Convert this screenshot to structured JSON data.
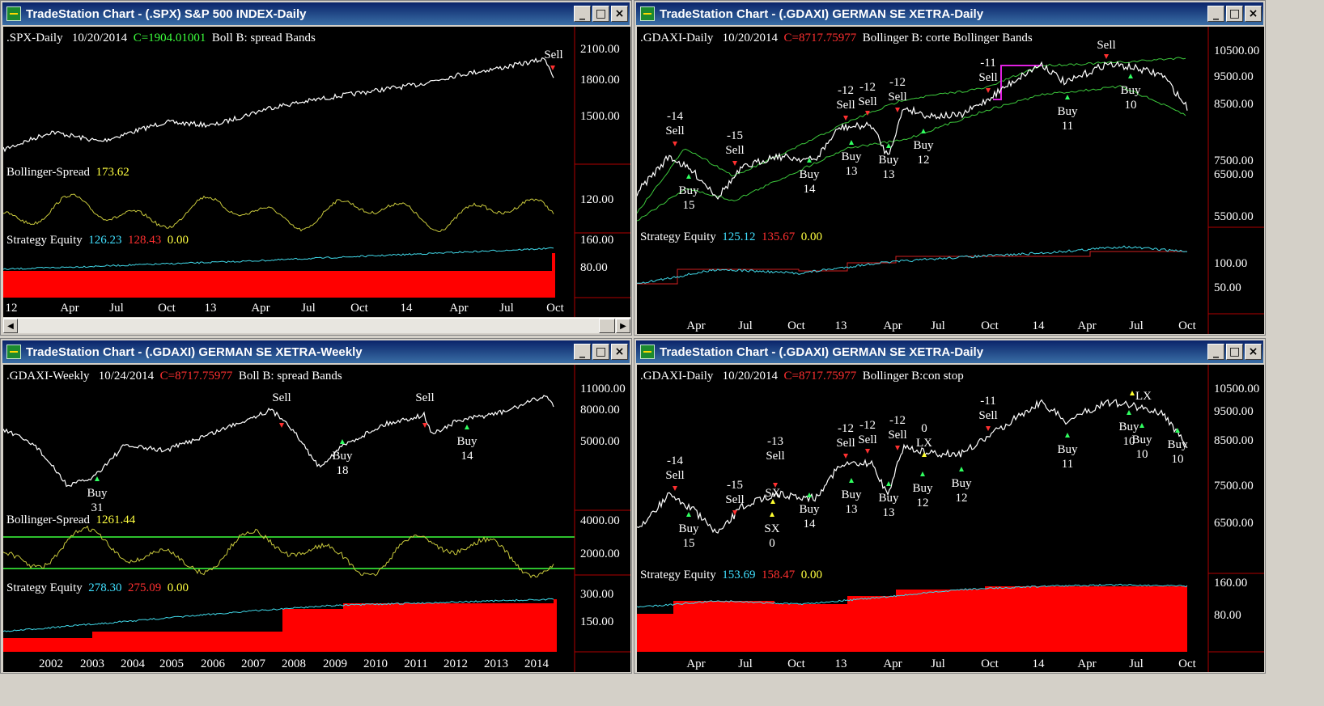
{
  "windows": [
    {
      "id": "spx",
      "title": "TradeStation Chart - (.SPX) S&P 500 INDEX-Daily",
      "header": {
        "symbol": ".SPX-Daily",
        "date": "10/20/2014",
        "close": "C=1904.01001",
        "study": "Boll B: spread Bands"
      },
      "price_axis": [
        "2100.00",
        "1800.00",
        "1500.00"
      ],
      "indicator": {
        "name": "Bollinger-Spread",
        "value": "173.62",
        "axis": [
          "120.00"
        ]
      },
      "equity": {
        "name": "Strategy Equity",
        "v1": "126.23",
        "v2": "128.43",
        "v3": "0.00",
        "axis": [
          "160.00",
          "80.00"
        ]
      },
      "x_labels": [
        "12",
        "Apr",
        "Jul",
        "Oct",
        "13",
        "Apr",
        "Jul",
        "Oct",
        "14",
        "Apr",
        "Jul",
        "Oct"
      ],
      "signals": [
        {
          "type": "sell",
          "text": "Sell"
        }
      ]
    },
    {
      "id": "dax-daily-1",
      "title": "TradeStation Chart - (.GDAXI) GERMAN SE XETRA-Daily",
      "header": {
        "symbol": ".GDAXI-Daily",
        "date": "10/20/2014",
        "close": "C=8717.75977",
        "study": "Bollinger B: corte  Bollinger Bands"
      },
      "price_axis": [
        "10500.00",
        "9500.00",
        "8500.00",
        "7500.00",
        "6500.00",
        "5500.00"
      ],
      "equity": {
        "name": "Strategy Equity",
        "v1": "125.12",
        "v2": "135.67",
        "v3": "0.00",
        "axis": [
          "100.00",
          "50.00"
        ]
      },
      "x_labels": [
        "Apr",
        "Jul",
        "Oct",
        "13",
        "Apr",
        "Jul",
        "Oct",
        "14",
        "Apr",
        "Jul",
        "Oct"
      ],
      "signals": [
        {
          "type": "sell",
          "text": "-14\nSell"
        },
        {
          "type": "buy",
          "text": "Buy\n15"
        },
        {
          "type": "sell",
          "text": "-15\nSell"
        },
        {
          "type": "buy",
          "text": "Buy\n14"
        },
        {
          "type": "sell",
          "text": "-12\nSell"
        },
        {
          "type": "buy",
          "text": "Buy\n13"
        },
        {
          "type": "sell",
          "text": "-12\nSell"
        },
        {
          "type": "buy",
          "text": "Buy\n13"
        },
        {
          "type": "sell",
          "text": "-12\nSell"
        },
        {
          "type": "buy",
          "text": "Buy\n12"
        },
        {
          "type": "sell",
          "text": "-11\nSell"
        },
        {
          "type": "buy",
          "text": "Buy\n11"
        },
        {
          "type": "sell",
          "text": "Sell"
        },
        {
          "type": "buy",
          "text": "Buy\n10"
        }
      ]
    },
    {
      "id": "dax-weekly",
      "title": "TradeStation Chart - (.GDAXI) GERMAN SE XETRA-Weekly",
      "header": {
        "symbol": ".GDAXI-Weekly",
        "date": "10/24/2014",
        "close": "C=8717.75977",
        "study": "Boll B: spread Bands"
      },
      "price_axis": [
        "11000.00",
        "8000.00",
        "5000.00"
      ],
      "indicator": {
        "name": "Bollinger-Spread",
        "value": "1261.44",
        "axis": [
          "4000.00",
          "2000.00"
        ]
      },
      "equity": {
        "name": "Strategy Equity",
        "v1": "278.30",
        "v2": "275.09",
        "v3": "0.00",
        "axis": [
          "300.00",
          "150.00"
        ]
      },
      "x_labels": [
        "2002",
        "2003",
        "2004",
        "2005",
        "2006",
        "2007",
        "2008",
        "2009",
        "2010",
        "2011",
        "2012",
        "2013",
        "2014"
      ],
      "signals": [
        {
          "type": "sell",
          "text": "Sell"
        },
        {
          "type": "buy",
          "text": "Buy\n18"
        },
        {
          "type": "sell",
          "text": "Sell"
        },
        {
          "type": "buy",
          "text": "Buy\n14"
        },
        {
          "type": "buy",
          "text": "Buy\n31"
        }
      ]
    },
    {
      "id": "dax-daily-2",
      "title": "TradeStation Chart - (.GDAXI) GERMAN SE XETRA-Daily",
      "header": {
        "symbol": ".GDAXI-Daily",
        "date": "10/20/2014",
        "close": "C=8717.75977",
        "study": "Bollinger B:con stop"
      },
      "price_axis": [
        "10500.00",
        "9500.00",
        "8500.00",
        "7500.00",
        "6500.00"
      ],
      "equity": {
        "name": "Strategy Equity",
        "v1": "153.69",
        "v2": "158.47",
        "v3": "0.00",
        "axis": [
          "160.00",
          "80.00"
        ]
      },
      "x_labels": [
        "Apr",
        "Jul",
        "Oct",
        "13",
        "Apr",
        "Jul",
        "Oct",
        "14",
        "Apr",
        "Jul",
        "Oct"
      ],
      "signals": [
        {
          "type": "sell",
          "text": "-14\nSell"
        },
        {
          "type": "buy",
          "text": "Buy\n15"
        },
        {
          "type": "sell",
          "text": "-15\nSell"
        },
        {
          "type": "buy",
          "text": "Buy\n14"
        },
        {
          "type": "sell",
          "text": "-13\nSell"
        },
        {
          "type": "exit",
          "text": "SX"
        },
        {
          "type": "exit",
          "text": "SX\n0"
        },
        {
          "type": "sell",
          "text": "-12\nSell"
        },
        {
          "type": "buy",
          "text": "Buy\n13"
        },
        {
          "type": "sell",
          "text": "-12\nSell"
        },
        {
          "type": "buy",
          "text": "Buy\n13"
        },
        {
          "type": "sell",
          "text": "-12\nSell"
        },
        {
          "type": "exit",
          "text": "0\nLX"
        },
        {
          "type": "buy",
          "text": "Buy\n12"
        },
        {
          "type": "buy",
          "text": "Buy\n12"
        },
        {
          "type": "sell",
          "text": "-11\nSell"
        },
        {
          "type": "buy",
          "text": "Buy\n11"
        },
        {
          "type": "exit",
          "text": "LX"
        },
        {
          "type": "buy",
          "text": "Buy\n10"
        },
        {
          "type": "buy",
          "text": "Buy\n10"
        },
        {
          "type": "buy",
          "text": "Buy\n10"
        }
      ]
    }
  ],
  "colors": {
    "price": "#ffffff",
    "bands": "#3cc83c",
    "indicator": "#c8c83c",
    "equity_line": "#40d8e8",
    "equity_fill": "#ff0000",
    "sell": "#ff3030",
    "buy": "#30ff60",
    "exit": "#ffff30",
    "axis_divider": "#b00000"
  }
}
